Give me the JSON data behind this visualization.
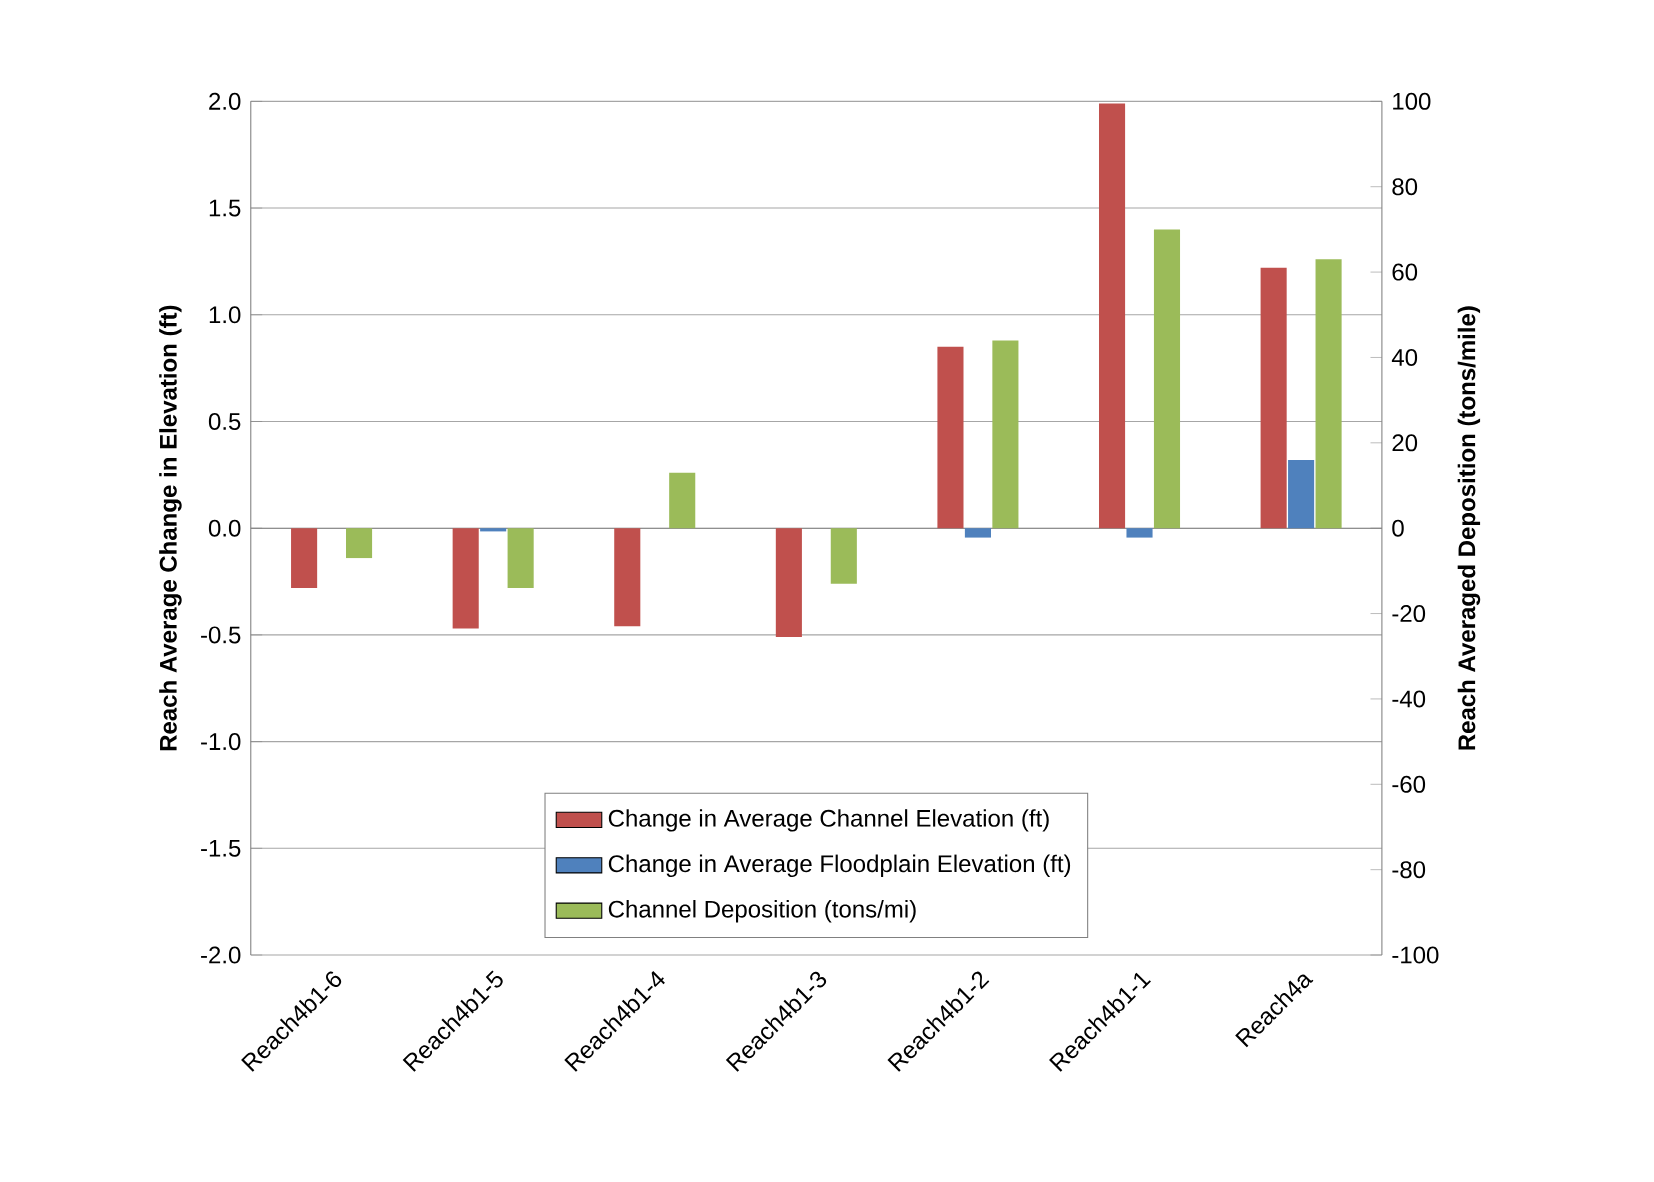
{
  "chart_data": {
    "type": "bar",
    "ylabel": "Reach Average Change in Elevation (ft)",
    "y2label": "Reach Averaged Deposition (tons/mile)",
    "categories": [
      "Reach4b1-6",
      "Reach4b1-5",
      "Reach4b1-4",
      "Reach4b1-3",
      "Reach4b1-2",
      "Reach4b1-1",
      "Reach4a"
    ],
    "series": [
      {
        "name": "Change in Average Channel Elevation (ft)",
        "color": "#c0504d",
        "values": [
          -0.28,
          -0.47,
          -0.46,
          -0.51,
          0.85,
          1.99,
          1.22
        ]
      },
      {
        "name": "Change in Average Floodplain Elevation (ft)",
        "color": "#4f81bd",
        "values": [
          0.0,
          -0.015,
          0.0,
          0.0,
          -0.044,
          -0.044,
          0.32
        ]
      },
      {
        "name": "Channel Deposition (tons/mi)",
        "color": "#9bbb59",
        "axis": "y2",
        "values": [
          -7,
          -14,
          13,
          -13,
          44,
          70,
          63
        ]
      }
    ],
    "ylim": [
      -2,
      2
    ],
    "yticks": [
      {
        "value": -2,
        "label": "-2.0"
      },
      {
        "value": -1.5,
        "label": "-1.5"
      },
      {
        "value": -1,
        "label": "-1.0"
      },
      {
        "value": -0.5,
        "label": "-0.5"
      },
      {
        "value": 0,
        "label": "0.0"
      },
      {
        "value": 0.5,
        "label": "0.5"
      },
      {
        "value": 1,
        "label": "1.0"
      },
      {
        "value": 1.5,
        "label": "1.5"
      },
      {
        "value": 2,
        "label": "2.0"
      }
    ],
    "y2lim": [
      -100,
      100
    ],
    "y2ticks": [
      -100,
      -80,
      -60,
      -40,
      -20,
      0,
      20,
      40,
      60,
      80,
      100
    ],
    "grid": "y",
    "legend": "bottom"
  }
}
